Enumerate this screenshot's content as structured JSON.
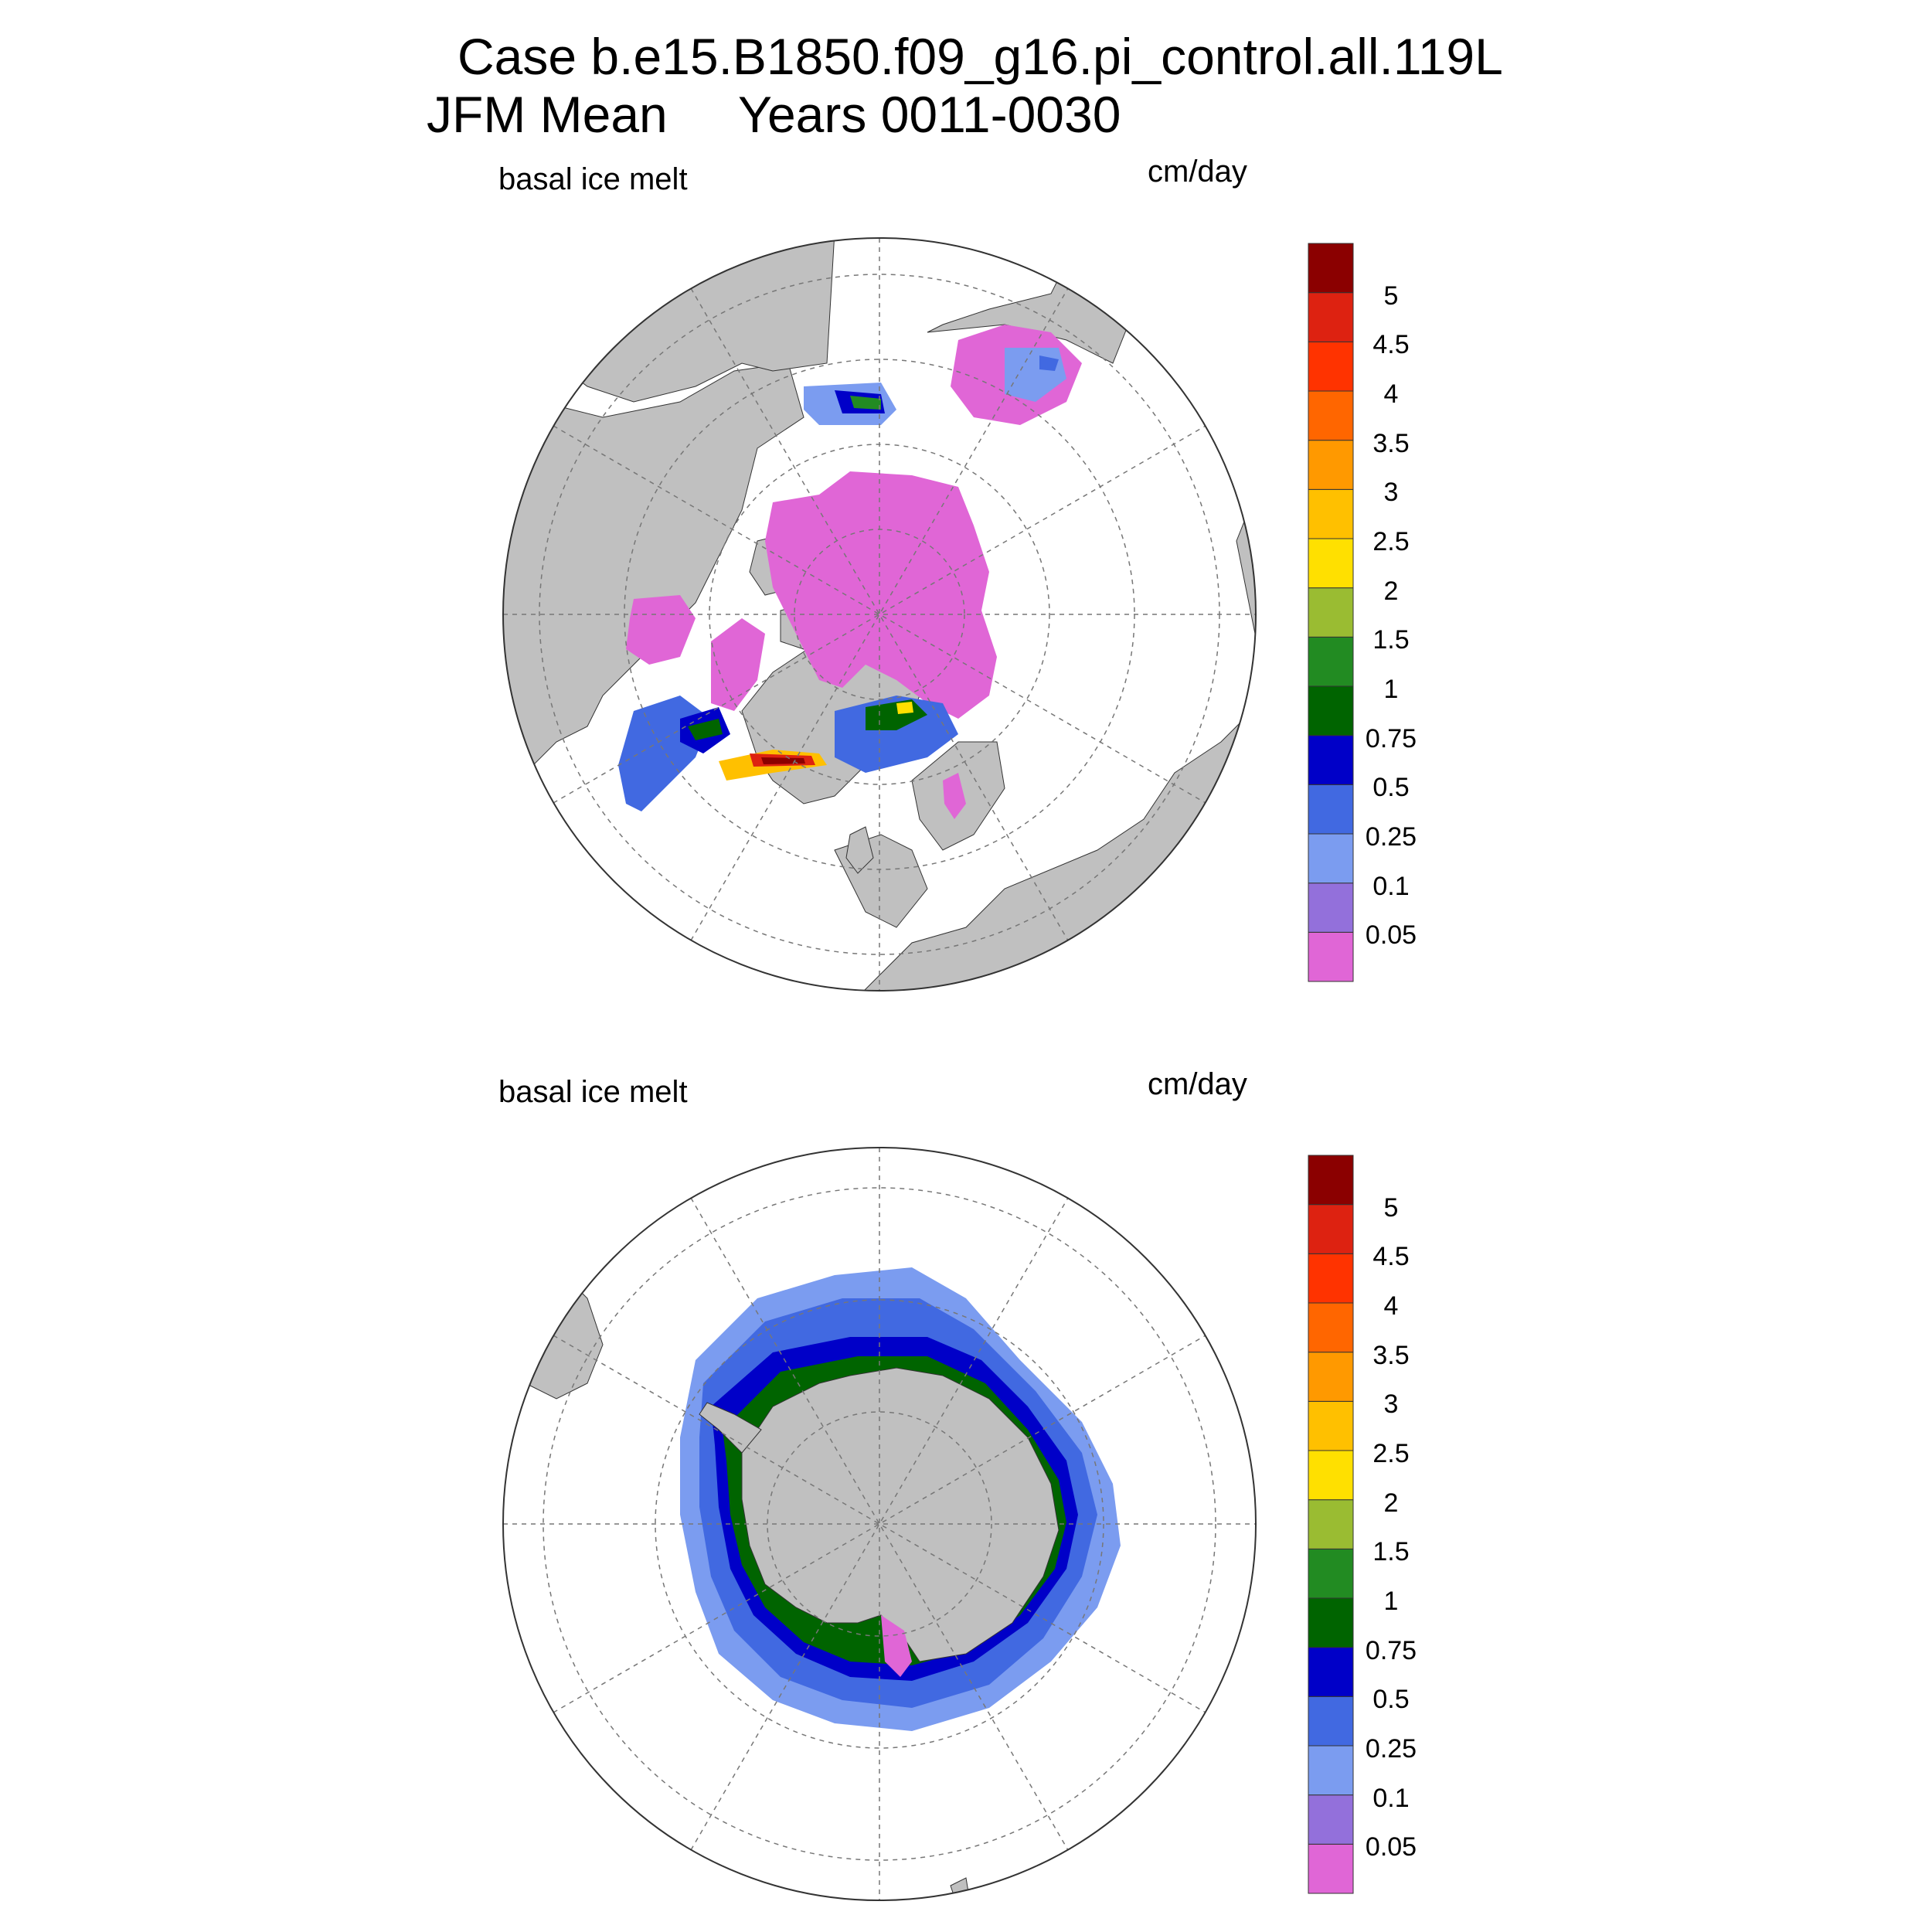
{
  "title": {
    "line1": "Case b.e15.B1850.f09_g16.pi_control.all.119L",
    "line2_left": "JFM Mean",
    "line2_right": "Years 0011-0030"
  },
  "panels": [
    {
      "id": "north",
      "variable": "basal ice melt",
      "units": "cm/day"
    },
    {
      "id": "south",
      "variable": "basal ice melt",
      "units": "cm/day"
    }
  ],
  "colorbar": {
    "colors": [
      "#e066d6",
      "#9370db",
      "#7b9cf0",
      "#4169e1",
      "#0000c8",
      "#006400",
      "#228b22",
      "#9abc32",
      "#ffe000",
      "#ffc000",
      "#ff9900",
      "#ff6600",
      "#ff3300",
      "#dd2211",
      "#8b0000"
    ],
    "labels": [
      "0.05",
      "0.1",
      "0.25",
      "0.5",
      "0.75",
      "1",
      "1.5",
      "2",
      "2.5",
      "3",
      "3.5",
      "4",
      "4.5",
      "5"
    ]
  }
}
